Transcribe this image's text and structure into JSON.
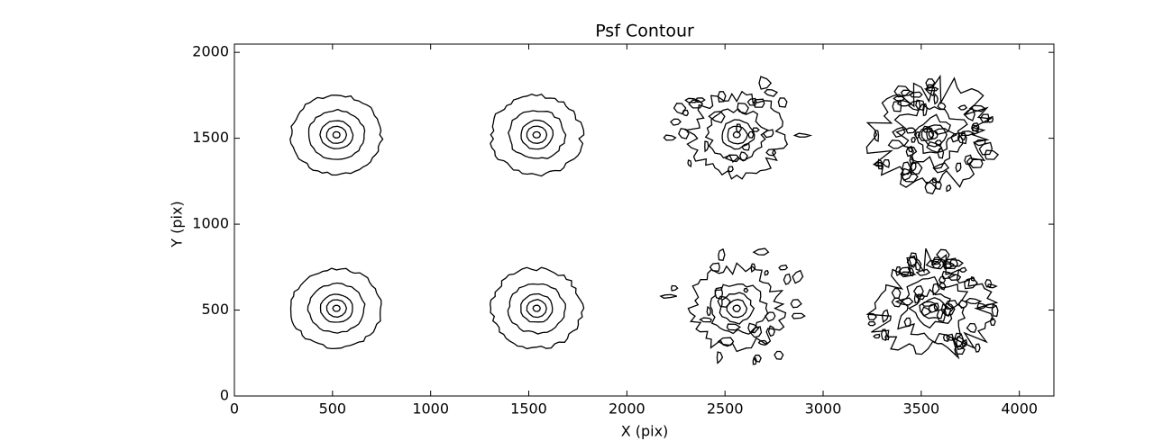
{
  "chart_data": {
    "type": "contour",
    "title": "Psf Contour",
    "x_label": "X (pix)",
    "y_label": "Y (pix)",
    "x": [
      520,
      1540,
      2560,
      3560,
      520,
      1540,
      2560,
      3560
    ],
    "values": [
      1520,
      1520,
      1520,
      1520,
      510,
      510,
      510,
      510
    ],
    "color": "#000000",
    "xlim": [
      0,
      4176
    ],
    "ylim": [
      0,
      2048
    ],
    "xticks": [
      0,
      500,
      1000,
      1500,
      2000,
      2500,
      3000,
      3500,
      4000
    ],
    "yticks": [
      0,
      500,
      1000,
      1500,
      2000
    ]
  }
}
